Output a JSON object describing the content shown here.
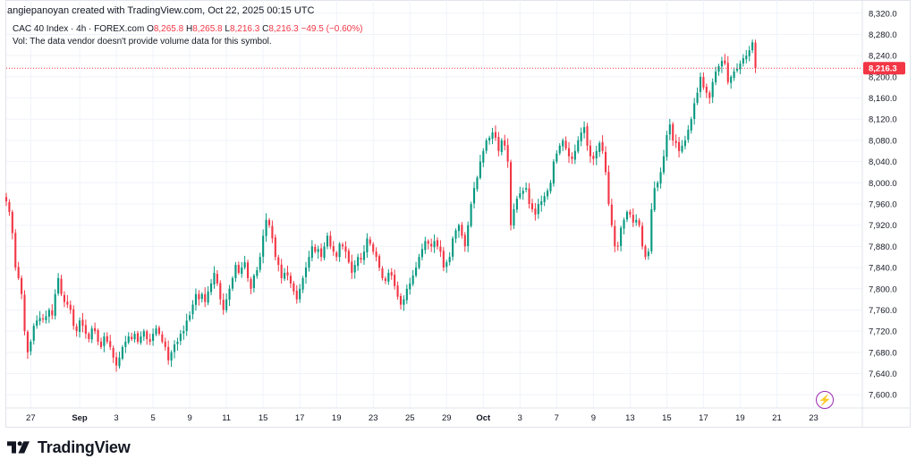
{
  "attribution": "angiepanoyan created with TradingView.com, Oct 22, 2025 00:15 UTC",
  "legend": {
    "symbol": "CAC 40 Index · 4h · FOREX.com",
    "o_label": "O",
    "o_value": "8,265.8",
    "h_label": "H",
    "h_value": "8,265.8",
    "l_label": "L",
    "l_value": "8,216.3",
    "c_label": "C",
    "c_value": "8,216.3",
    "change": "−49.5 (−0.60%)"
  },
  "volume_note": "Vol: The data vendor doesn't provide volume data for this symbol.",
  "brand": "TradingView",
  "colors": {
    "up": "#089981",
    "down": "#f23645",
    "grid": "#f0f3fa",
    "axis_text": "#131722",
    "price_line": "#f23645"
  },
  "chart_data": {
    "type": "candlestick",
    "ylim": [
      7575,
      8345
    ],
    "y_ticks": [
      "7,600.0",
      "7,640.0",
      "7,680.0",
      "7,720.0",
      "7,760.0",
      "7,800.0",
      "7,840.0",
      "7,880.0",
      "7,920.0",
      "7,960.0",
      "8,000.0",
      "8,040.0",
      "8,080.0",
      "8,120.0",
      "8,160.0",
      "8,200.0",
      "8,240.0",
      "8,280.0",
      "8,320.0"
    ],
    "y_tick_values": [
      7600,
      7640,
      7680,
      7720,
      7760,
      7800,
      7840,
      7880,
      7920,
      7960,
      8000,
      8040,
      8080,
      8120,
      8160,
      8200,
      8240,
      8280,
      8320
    ],
    "x_ticks": [
      {
        "label": "27",
        "index": 8,
        "bold": false
      },
      {
        "label": "Sep",
        "index": 24,
        "bold": true
      },
      {
        "label": "3",
        "index": 36,
        "bold": false
      },
      {
        "label": "5",
        "index": 48,
        "bold": false
      },
      {
        "label": "9",
        "index": 60,
        "bold": false
      },
      {
        "label": "11",
        "index": 72,
        "bold": false
      },
      {
        "label": "15",
        "index": 84,
        "bold": false
      },
      {
        "label": "17",
        "index": 96,
        "bold": false
      },
      {
        "label": "19",
        "index": 108,
        "bold": false
      },
      {
        "label": "23",
        "index": 120,
        "bold": false
      },
      {
        "label": "25",
        "index": 132,
        "bold": false
      },
      {
        "label": "29",
        "index": 144,
        "bold": false
      },
      {
        "label": "Oct",
        "index": 156,
        "bold": true
      },
      {
        "label": "3",
        "index": 168,
        "bold": false
      },
      {
        "label": "7",
        "index": 180,
        "bold": false
      },
      {
        "label": "9",
        "index": 192,
        "bold": false
      },
      {
        "label": "13",
        "index": 204,
        "bold": false
      },
      {
        "label": "15",
        "index": 216,
        "bold": false
      },
      {
        "label": "17",
        "index": 228,
        "bold": false
      },
      {
        "label": "19",
        "index": 240,
        "bold": false
      },
      {
        "label": "21",
        "index": 252,
        "bold": false
      },
      {
        "label": "23",
        "index": 264,
        "bold": false
      }
    ],
    "last_price": 8216.3,
    "last_price_label": "8,216.3",
    "closes": [
      7965,
      7945,
      7905,
      7840,
      7820,
      7790,
      7720,
      7680,
      7700,
      7730,
      7740,
      7745,
      7742,
      7748,
      7760,
      7750,
      7790,
      7820,
      7790,
      7775,
      7770,
      7760,
      7730,
      7720,
      7740,
      7730,
      7715,
      7705,
      7725,
      7720,
      7700,
      7690,
      7710,
      7700,
      7690,
      7670,
      7655,
      7670,
      7690,
      7700,
      7710,
      7705,
      7715,
      7700,
      7710,
      7720,
      7705,
      7700,
      7715,
      7725,
      7715,
      7700,
      7690,
      7665,
      7680,
      7695,
      7700,
      7715,
      7720,
      7740,
      7750,
      7770,
      7790,
      7780,
      7790,
      7775,
      7795,
      7810,
      7830,
      7810,
      7780,
      7760,
      7780,
      7800,
      7820,
      7845,
      7830,
      7840,
      7850,
      7820,
      7800,
      7825,
      7835,
      7860,
      7900,
      7930,
      7920,
      7895,
      7860,
      7845,
      7820,
      7830,
      7825,
      7810,
      7795,
      7780,
      7800,
      7820,
      7840,
      7860,
      7880,
      7870,
      7875,
      7860,
      7880,
      7900,
      7880,
      7870,
      7860,
      7885,
      7880,
      7870,
      7850,
      7830,
      7845,
      7860,
      7855,
      7870,
      7895,
      7885,
      7870,
      7860,
      7840,
      7820,
      7815,
      7830,
      7825,
      7805,
      7785,
      7770,
      7780,
      7800,
      7810,
      7825,
      7840,
      7860,
      7875,
      7890,
      7885,
      7880,
      7890,
      7880,
      7870,
      7840,
      7850,
      7860,
      7895,
      7910,
      7920,
      7900,
      7880,
      7920,
      7960,
      7990,
      8010,
      8040,
      8060,
      8080,
      8085,
      8095,
      8085,
      8060,
      8080,
      8070,
      8040,
      7920,
      7950,
      7970,
      7980,
      7985,
      7990,
      7960,
      7950,
      7940,
      7960,
      7965,
      7975,
      7985,
      8000,
      8040,
      8055,
      8070,
      8080,
      8065,
      8050,
      8045,
      8060,
      8080,
      8095,
      8105,
      8070,
      8050,
      8045,
      8060,
      8075,
      8060,
      8020,
      7960,
      7920,
      7880,
      7880,
      7915,
      7930,
      7945,
      7940,
      7925,
      7930,
      7920,
      7880,
      7860,
      7870,
      7950,
      7990,
      8000,
      8020,
      8050,
      8090,
      8110,
      8080,
      8075,
      8060,
      8070,
      8080,
      8100,
      8120,
      8150,
      8170,
      8200,
      8180,
      8170,
      8160,
      8190,
      8210,
      8220,
      8230,
      8225,
      8190,
      8200,
      8210,
      8215,
      8225,
      8235,
      8240,
      8250,
      8265,
      8216.3
    ]
  }
}
